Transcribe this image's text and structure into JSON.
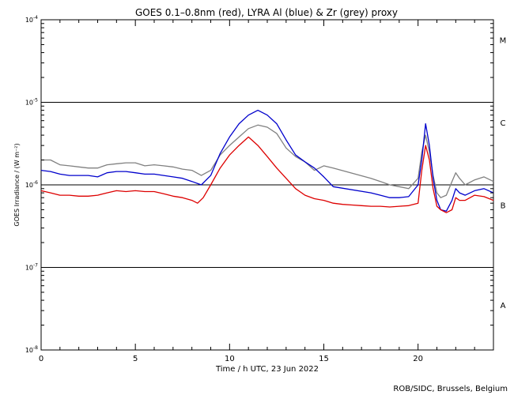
{
  "chart_data": {
    "type": "line",
    "title": "GOES 0.1–0.8nm (red), LYRA Al (blue) & Zr (grey) proxy",
    "xlabel": "Time / h UTC, 23 Jun 2022",
    "ylabel": "GOES Irradiance / (W m⁻²)",
    "xlim": [
      0,
      24
    ],
    "ylim": [
      1e-08,
      0.0001
    ],
    "y_scale": "log",
    "x_ticks": [
      0,
      5,
      10,
      15,
      20
    ],
    "y_ticks": [
      {
        "value": 1e-08,
        "base": "10",
        "exp": "-8"
      },
      {
        "value": 1e-07,
        "base": "10",
        "exp": "-7"
      },
      {
        "value": 1e-06,
        "base": "10",
        "exp": "-6"
      },
      {
        "value": 1e-05,
        "base": "10",
        "exp": "-5"
      },
      {
        "value": 0.0001,
        "base": "10",
        "exp": "-4"
      }
    ],
    "class_levels": [
      1e-07,
      1e-06,
      1e-05
    ],
    "class_labels": [
      {
        "label": "A",
        "y": 3.2e-08
      },
      {
        "label": "B",
        "y": 5.2e-07
      },
      {
        "label": "C",
        "y": 5.2e-06
      },
      {
        "label": "M",
        "y": 5.2e-05
      }
    ],
    "series": [
      {
        "color": "#808080",
        "x": [
          0,
          0.5,
          1,
          1.5,
          2,
          2.5,
          3,
          3.5,
          4,
          4.5,
          5,
          5.5,
          6,
          6.5,
          7,
          7.5,
          8,
          8.5,
          9,
          9.5,
          10,
          10.5,
          11,
          11.5,
          12,
          12.5,
          13,
          13.5,
          14,
          14.5,
          15,
          15.5,
          17.5,
          18,
          18.5,
          19,
          19.5,
          20,
          20.2,
          20.4,
          20.6,
          20.8,
          21,
          21.2,
          21.5,
          21.8,
          22,
          22.2,
          22.5,
          23,
          23.5,
          24
        ],
        "y": [
          2e-06,
          2e-06,
          1.75e-06,
          1.7e-06,
          1.65e-06,
          1.6e-06,
          1.6e-06,
          1.75e-06,
          1.8e-06,
          1.85e-06,
          1.85e-06,
          1.7e-06,
          1.75e-06,
          1.7e-06,
          1.65e-06,
          1.55e-06,
          1.5e-06,
          1.3e-06,
          1.5e-06,
          2.3e-06,
          3e-06,
          3.8e-06,
          4.8e-06,
          5.3e-06,
          5e-06,
          4.2e-06,
          2.8e-06,
          2.2e-06,
          1.9e-06,
          1.5e-06,
          1.7e-06,
          1.6e-06,
          1.2e-06,
          1.1e-06,
          1e-06,
          9.5e-07,
          9e-07,
          1.2e-06,
          2.5e-06,
          4e-06,
          2.5e-06,
          1.3e-06,
          8e-07,
          7e-07,
          7.5e-07,
          1.1e-06,
          1.4e-06,
          1.2e-06,
          1e-06,
          1.15e-06,
          1.25e-06,
          1.1e-06
        ]
      },
      {
        "color": "#0000cc",
        "x": [
          0,
          0.5,
          1,
          1.5,
          2,
          2.5,
          3,
          3.5,
          4,
          4.5,
          5,
          5.5,
          6,
          6.5,
          7,
          7.5,
          8,
          8.5,
          9,
          9.5,
          10,
          10.5,
          11,
          11.5,
          12,
          12.5,
          13,
          13.5,
          14,
          14.5,
          15,
          15.5,
          17.5,
          18,
          18.5,
          19,
          19.5,
          20,
          20.2,
          20.4,
          20.6,
          20.8,
          21,
          21.2,
          21.5,
          21.8,
          22,
          22.2,
          22.5,
          23,
          23.5,
          24
        ],
        "y": [
          1.5e-06,
          1.45e-06,
          1.35e-06,
          1.3e-06,
          1.3e-06,
          1.3e-06,
          1.25e-06,
          1.4e-06,
          1.45e-06,
          1.45e-06,
          1.4e-06,
          1.35e-06,
          1.35e-06,
          1.3e-06,
          1.25e-06,
          1.2e-06,
          1.1e-06,
          1e-06,
          1.3e-06,
          2.4e-06,
          3.8e-06,
          5.5e-06,
          7e-06,
          8e-06,
          7e-06,
          5.5e-06,
          3.5e-06,
          2.3e-06,
          1.9e-06,
          1.6e-06,
          1.25e-06,
          9.5e-07,
          8e-07,
          7.5e-07,
          7e-07,
          7e-07,
          7.2e-07,
          1e-06,
          2e-06,
          5.5e-06,
          3e-06,
          1.2e-06,
          6.5e-07,
          5e-07,
          4.8e-07,
          6.5e-07,
          9e-07,
          8e-07,
          7.5e-07,
          8.5e-07,
          9e-07,
          8e-07
        ]
      },
      {
        "color": "#dd0000",
        "x": [
          0,
          0.5,
          1,
          1.5,
          2,
          2.5,
          3,
          3.5,
          4,
          4.5,
          5,
          5.5,
          6,
          6.5,
          7,
          7.5,
          8,
          8.3,
          8.6,
          9,
          9.5,
          10,
          10.5,
          11,
          11.5,
          12,
          12.5,
          13,
          13.5,
          14,
          14.5,
          15,
          15.5,
          16,
          16.5,
          17,
          17.5,
          18,
          18.5,
          19,
          19.5,
          20,
          20.2,
          20.4,
          20.6,
          20.8,
          21,
          21.2,
          21.5,
          21.8,
          22,
          22.2,
          22.5,
          23,
          23.5,
          24
        ],
        "y": [
          8.5e-07,
          8e-07,
          7.5e-07,
          7.5e-07,
          7.3e-07,
          7.3e-07,
          7.5e-07,
          8e-07,
          8.5e-07,
          8.3e-07,
          8.5e-07,
          8.3e-07,
          8.3e-07,
          7.8e-07,
          7.3e-07,
          7e-07,
          6.5e-07,
          6e-07,
          7e-07,
          1e-06,
          1.6e-06,
          2.3e-06,
          3e-06,
          3.8e-06,
          3e-06,
          2.2e-06,
          1.6e-06,
          1.2e-06,
          9e-07,
          7.5e-07,
          6.8e-07,
          6.5e-07,
          6e-07,
          5.8e-07,
          5.7e-07,
          5.6e-07,
          5.5e-07,
          5.5e-07,
          5.4e-07,
          5.5e-07,
          5.6e-07,
          6e-07,
          1.5e-06,
          3e-06,
          2e-06,
          9e-07,
          5.5e-07,
          5e-07,
          4.6e-07,
          5e-07,
          7e-07,
          6.5e-07,
          6.5e-07,
          7.5e-07,
          7.2e-07,
          6.5e-07
        ]
      }
    ],
    "grid": false,
    "legend": "none",
    "annotations": [
      "ROB/SIDC, Brussels, Belgium"
    ]
  }
}
